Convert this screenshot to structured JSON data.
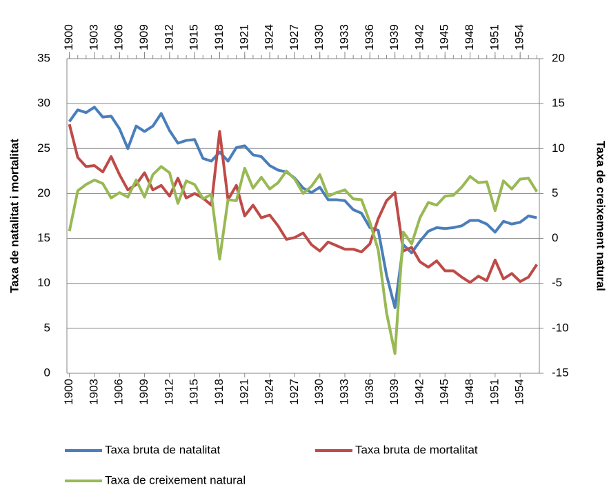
{
  "chart_data": {
    "type": "line",
    "x": [
      1900,
      1901,
      1902,
      1903,
      1904,
      1905,
      1906,
      1907,
      1908,
      1909,
      1910,
      1911,
      1912,
      1913,
      1914,
      1915,
      1916,
      1917,
      1918,
      1919,
      1920,
      1921,
      1922,
      1923,
      1924,
      1925,
      1926,
      1927,
      1928,
      1929,
      1930,
      1931,
      1932,
      1933,
      1934,
      1935,
      1936,
      1937,
      1938,
      1939,
      1940,
      1941,
      1942,
      1943,
      1944,
      1945,
      1946,
      1947,
      1948,
      1949,
      1950,
      1951,
      1952,
      1953,
      1954,
      1955,
      1956
    ],
    "xlim": [
      1899.7,
      1956.3
    ],
    "xticks": [
      1900,
      1903,
      1906,
      1909,
      1912,
      1915,
      1918,
      1921,
      1924,
      1927,
      1930,
      1933,
      1936,
      1939,
      1942,
      1945,
      1948,
      1951,
      1954
    ],
    "ylim": [
      0,
      35
    ],
    "yticks": [
      0,
      5,
      10,
      15,
      20,
      25,
      30,
      35
    ],
    "y2lim": [
      -15,
      20
    ],
    "y2ticks": [
      -15,
      -10,
      -5,
      0,
      5,
      10,
      15,
      20
    ],
    "ylabel": "Taxa de natalitat i mortalitat",
    "y2label": "Taxa de creixement natural",
    "grid": true,
    "series": [
      {
        "name": "Taxa bruta de natalitat",
        "color": "#4a7ebb",
        "values": [
          28.0,
          29.3,
          29.0,
          29.6,
          28.5,
          28.6,
          27.2,
          25.0,
          27.5,
          26.9,
          27.5,
          28.9,
          27.0,
          25.6,
          25.9,
          26.0,
          23.9,
          23.6,
          24.6,
          23.6,
          25.1,
          25.3,
          24.3,
          24.1,
          23.1,
          22.6,
          22.4,
          21.7,
          20.6,
          20.1,
          20.7,
          19.3,
          19.3,
          19.2,
          18.2,
          17.8,
          16.2,
          15.9,
          10.9,
          7.3,
          14.3,
          13.4,
          14.7,
          15.8,
          16.2,
          16.1,
          16.2,
          16.4,
          17.0,
          17.0,
          16.6,
          15.7,
          16.9,
          16.6,
          16.8,
          17.5,
          17.3
        ]
      },
      {
        "name": "Taxa bruta de mortalitat",
        "color": "#be4b48",
        "values": [
          27.7,
          24.0,
          23.0,
          23.1,
          22.4,
          24.1,
          22.1,
          20.4,
          21.0,
          22.3,
          20.4,
          20.9,
          19.7,
          21.7,
          19.5,
          20.0,
          19.5,
          18.7,
          26.9,
          19.3,
          20.9,
          17.5,
          18.7,
          17.3,
          17.6,
          16.4,
          14.9,
          15.1,
          15.6,
          14.3,
          13.6,
          14.6,
          14.2,
          13.8,
          13.8,
          13.5,
          14.4,
          17.2,
          19.2,
          20.1,
          13.6,
          14.0,
          12.4,
          11.8,
          12.5,
          11.4,
          11.4,
          10.7,
          10.1,
          10.8,
          10.3,
          12.6,
          10.5,
          11.1,
          10.2,
          10.7,
          12.1
        ]
      },
      {
        "name": "Taxa de creixement natural",
        "color": "#98b954",
        "axis": "y2",
        "values": [
          0.8,
          5.3,
          6.0,
          6.5,
          6.1,
          4.5,
          5.1,
          4.6,
          6.5,
          4.6,
          7.1,
          8.0,
          7.3,
          3.9,
          6.4,
          6.0,
          4.4,
          4.9,
          -2.3,
          4.3,
          4.2,
          7.8,
          5.6,
          6.8,
          5.5,
          6.2,
          7.5,
          6.6,
          5.0,
          5.8,
          7.1,
          4.7,
          5.1,
          5.4,
          4.4,
          4.3,
          1.8,
          -1.3,
          -8.3,
          -12.8,
          0.7,
          -0.6,
          2.3,
          4.0,
          3.7,
          4.7,
          4.8,
          5.7,
          6.9,
          6.2,
          6.3,
          3.1,
          6.4,
          5.5,
          6.6,
          6.7,
          5.2
        ]
      }
    ]
  }
}
